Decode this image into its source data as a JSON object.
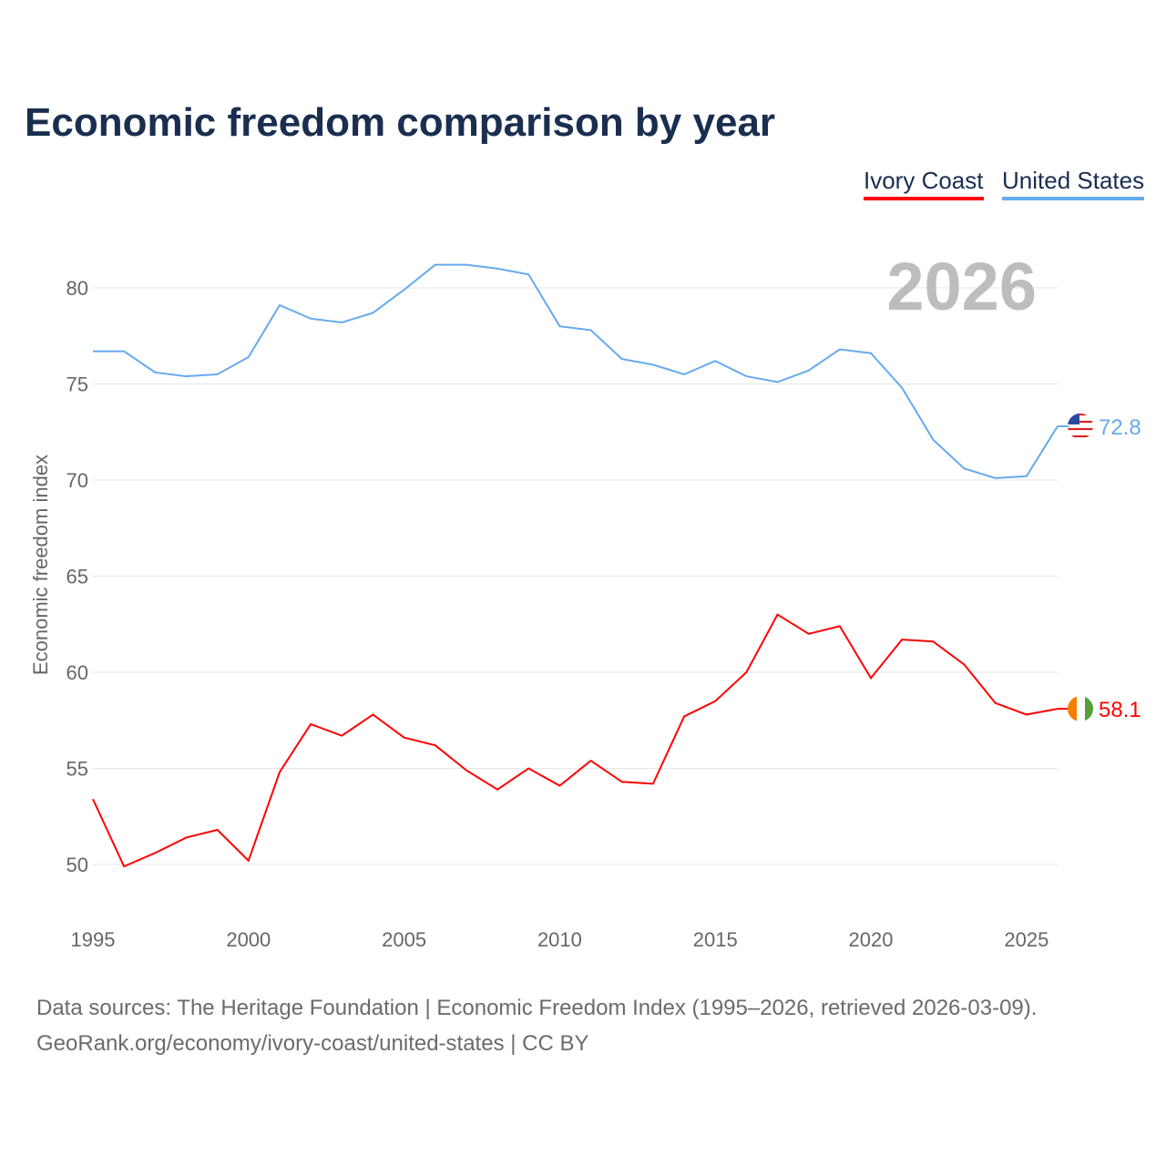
{
  "title": "Economic freedom comparison by year",
  "legend": [
    "Ivory Coast",
    "United States"
  ],
  "year_watermark": "2026",
  "source_lines": [
    "Data sources: The Heritage Foundation | Economic Freedom Index (1995–2026, retrieved 2026-03-09).",
    "GeoRank.org/economy/ivory-coast/united-states | CC BY"
  ],
  "chart_data": {
    "type": "line",
    "title": "Economic freedom comparison by year",
    "xlabel": "",
    "ylabel": "Economic freedom index",
    "x": [
      1995,
      1996,
      1997,
      1998,
      1999,
      2000,
      2001,
      2002,
      2003,
      2004,
      2005,
      2006,
      2007,
      2008,
      2009,
      2010,
      2011,
      2012,
      2013,
      2014,
      2015,
      2016,
      2017,
      2018,
      2019,
      2020,
      2021,
      2022,
      2023,
      2024,
      2025,
      2026
    ],
    "xlim": [
      1995,
      2026
    ],
    "ylim": [
      47.5,
      83
    ],
    "xticks": [
      "1995",
      "2000",
      "2005",
      "2010",
      "2015",
      "2020",
      "2025"
    ],
    "yticks": [
      "50",
      "55",
      "60",
      "65",
      "70",
      "75",
      "80"
    ],
    "grid": true,
    "legend_position": "top-right",
    "series": [
      {
        "name": "Ivory Coast",
        "color": "#ff0000",
        "end_label": "58.1",
        "values": [
          53.4,
          49.9,
          50.6,
          51.4,
          51.8,
          50.2,
          54.8,
          57.3,
          56.7,
          57.8,
          56.6,
          56.2,
          54.9,
          53.9,
          55.0,
          54.1,
          55.4,
          54.3,
          54.2,
          57.7,
          58.5,
          60.0,
          63.0,
          62.0,
          62.4,
          59.7,
          61.7,
          61.6,
          60.4,
          58.4,
          57.8,
          58.1
        ]
      },
      {
        "name": "United States",
        "color": "#66aaee",
        "end_label": "72.8",
        "values": [
          76.7,
          76.7,
          75.6,
          75.4,
          75.5,
          76.4,
          79.1,
          78.4,
          78.2,
          78.7,
          79.9,
          81.2,
          81.2,
          81.0,
          80.7,
          78.0,
          77.8,
          76.3,
          76.0,
          75.5,
          76.2,
          75.4,
          75.1,
          75.7,
          76.8,
          76.6,
          74.8,
          72.1,
          70.6,
          70.1,
          70.2,
          72.8
        ]
      }
    ]
  }
}
